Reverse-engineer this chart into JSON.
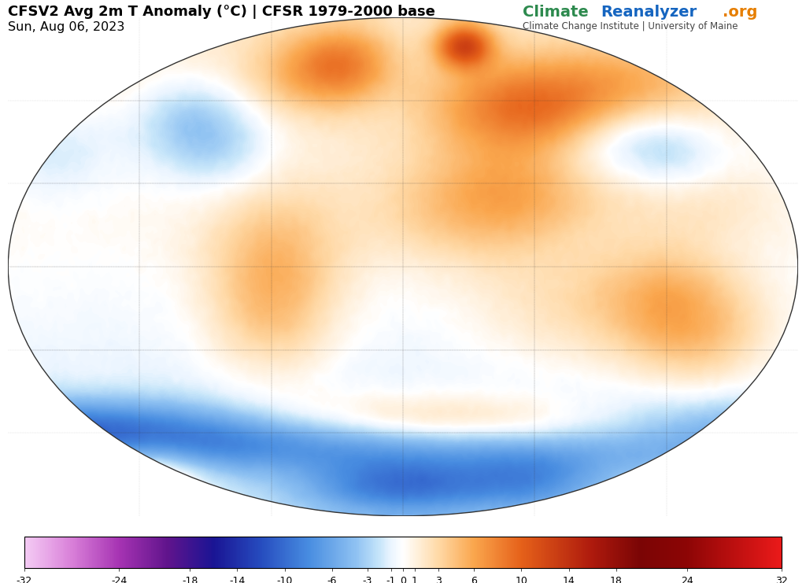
{
  "title_line1": "CFSV2 Avg 2m T Anomaly (°C) | CFSR 1979-2000 base",
  "title_line2": "Sun, Aug 06, 2023",
  "watermark_green": "Climate",
  "watermark_blue": "Reanalyzer",
  "watermark_orange": ".org",
  "watermark_sub": "Climate Change Institute | University of Maine",
  "colorbar_ticks": [
    -32,
    -24,
    -18,
    -14,
    -10,
    -6,
    -3,
    -1,
    0,
    1,
    3,
    6,
    10,
    14,
    18,
    24,
    32
  ],
  "vmin": -32,
  "vmax": 32,
  "background_color": "#ffffff"
}
